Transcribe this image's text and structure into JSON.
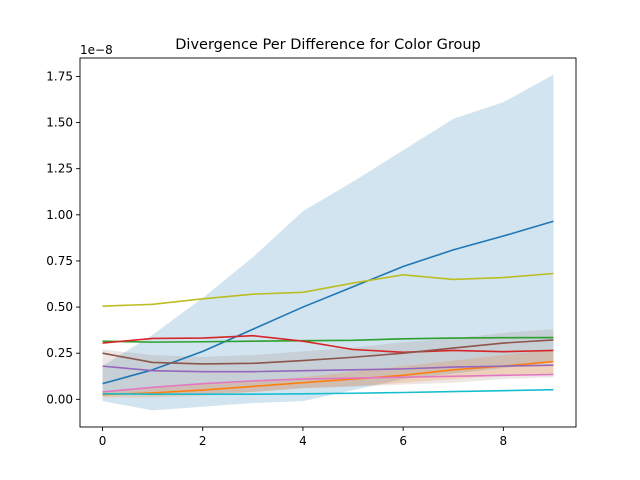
{
  "chart_data": {
    "type": "line",
    "title": "Divergence Per Difference for Color Group",
    "xlabel": "",
    "ylabel": "",
    "y_scale_label": "1e−8",
    "xlim": [
      -0.45,
      9.45
    ],
    "ylim": [
      -0.15,
      1.85
    ],
    "x_ticks": [
      0,
      2,
      4,
      6,
      8
    ],
    "x_tick_labels": [
      "0",
      "2",
      "4",
      "6",
      "8"
    ],
    "y_ticks": [
      0.0,
      0.25,
      0.5,
      0.75,
      1.0,
      1.25,
      1.5,
      1.75
    ],
    "y_tick_labels": [
      "0.00",
      "0.25",
      "0.50",
      "0.75",
      "1.00",
      "1.25",
      "1.50",
      "1.75"
    ],
    "grid": false,
    "x": [
      0,
      1,
      2,
      3,
      4,
      5,
      6,
      7,
      8,
      9
    ],
    "bands": [
      {
        "color": "#1f77b4",
        "opacity": 0.2,
        "lower": [
          -0.01,
          -0.06,
          -0.04,
          -0.02,
          -0.01,
          0.05,
          0.11,
          0.14,
          0.17,
          0.2
        ],
        "upper": [
          0.18,
          0.35,
          0.55,
          0.77,
          1.02,
          1.18,
          1.35,
          1.52,
          1.61,
          1.76
        ]
      },
      {
        "color": "#ff7f0e",
        "opacity": 0.2,
        "lower": [
          0.01,
          0.01,
          0.02,
          0.04,
          0.06,
          0.07,
          0.09,
          0.11,
          0.13,
          0.14
        ],
        "upper": [
          0.04,
          0.06,
          0.08,
          0.1,
          0.12,
          0.15,
          0.18,
          0.21,
          0.24,
          0.27
        ]
      },
      {
        "color": "#8c564b",
        "opacity": 0.15,
        "lower": [
          0.03,
          0.02,
          0.03,
          0.04,
          0.06,
          0.07,
          0.08,
          0.09,
          0.11,
          0.12
        ],
        "upper": [
          0.27,
          0.24,
          0.23,
          0.24,
          0.26,
          0.28,
          0.31,
          0.33,
          0.36,
          0.38
        ]
      }
    ],
    "series": [
      {
        "color": "#1f77b4",
        "values": [
          0.085,
          0.16,
          0.26,
          0.38,
          0.5,
          0.61,
          0.72,
          0.81,
          0.885,
          0.965
        ]
      },
      {
        "color": "#ff7f0e",
        "values": [
          0.025,
          0.035,
          0.05,
          0.07,
          0.09,
          0.11,
          0.13,
          0.16,
          0.18,
          0.205
        ]
      },
      {
        "color": "#2ca02c",
        "values": [
          0.315,
          0.31,
          0.312,
          0.315,
          0.318,
          0.32,
          0.328,
          0.332,
          0.334,
          0.335
        ]
      },
      {
        "color": "#d62728",
        "values": [
          0.305,
          0.33,
          0.332,
          0.345,
          0.315,
          0.27,
          0.255,
          0.265,
          0.258,
          0.265
        ]
      },
      {
        "color": "#9467bd",
        "values": [
          0.18,
          0.155,
          0.15,
          0.15,
          0.155,
          0.16,
          0.165,
          0.175,
          0.18,
          0.185
        ]
      },
      {
        "color": "#8c564b",
        "values": [
          0.25,
          0.2,
          0.192,
          0.195,
          0.21,
          0.228,
          0.25,
          0.278,
          0.305,
          0.322
        ]
      },
      {
        "color": "#e377c2",
        "values": [
          0.04,
          0.065,
          0.085,
          0.1,
          0.11,
          0.115,
          0.12,
          0.125,
          0.13,
          0.135
        ]
      },
      {
        "color": "#bcbd22",
        "values": [
          0.505,
          0.515,
          0.545,
          0.57,
          0.58,
          0.63,
          0.675,
          0.65,
          0.66,
          0.682
        ]
      },
      {
        "color": "#17becf",
        "values": [
          0.03,
          0.028,
          0.028,
          0.028,
          0.03,
          0.033,
          0.037,
          0.042,
          0.047,
          0.052
        ]
      }
    ]
  }
}
